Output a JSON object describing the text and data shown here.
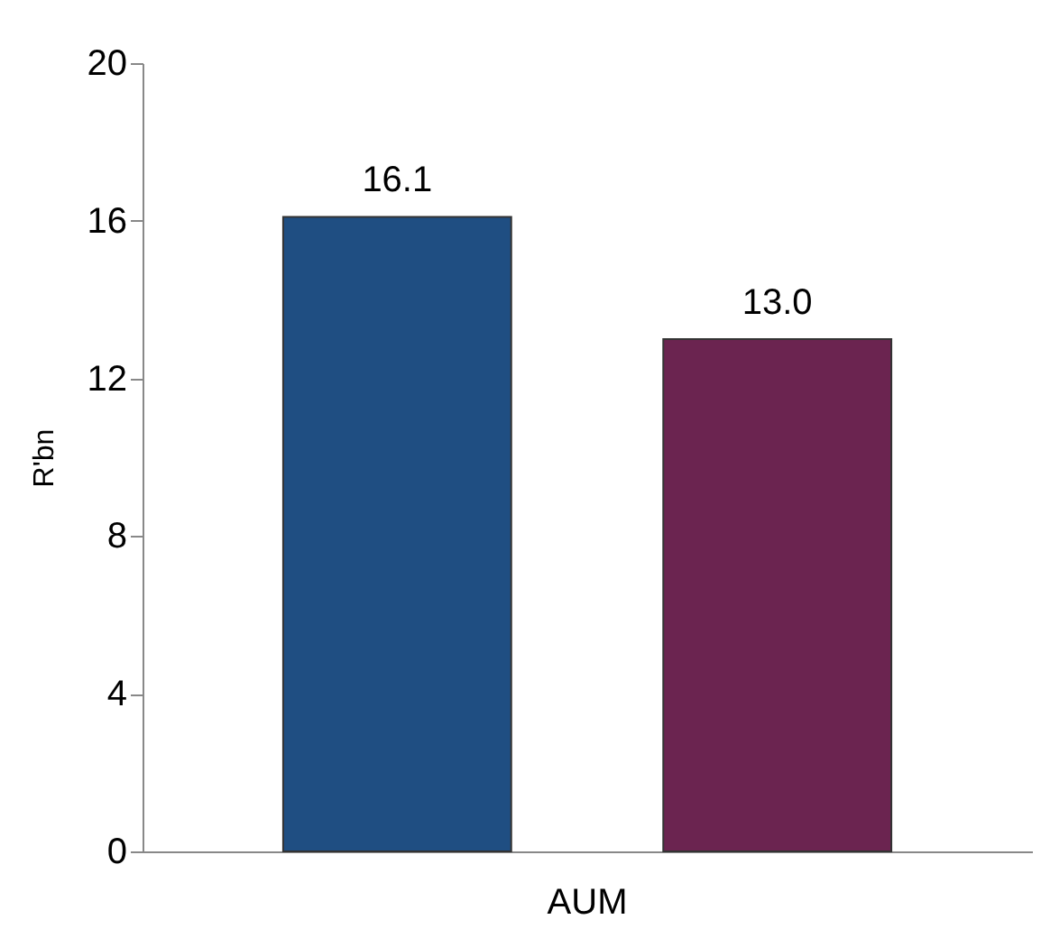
{
  "chart_data": {
    "type": "bar",
    "ylabel": "R'bn",
    "categories": [
      "AUM"
    ],
    "series": [
      {
        "color": "#1f4e82",
        "values": [
          16.1
        ],
        "value_labels": [
          "16.1"
        ]
      },
      {
        "color": "#6b2450",
        "values": [
          13.0
        ],
        "value_labels": [
          "13.0"
        ]
      }
    ],
    "ylim": [
      0,
      20
    ],
    "yticks": [
      0,
      4,
      8,
      12,
      16,
      20
    ],
    "grid": false,
    "legend": false
  }
}
